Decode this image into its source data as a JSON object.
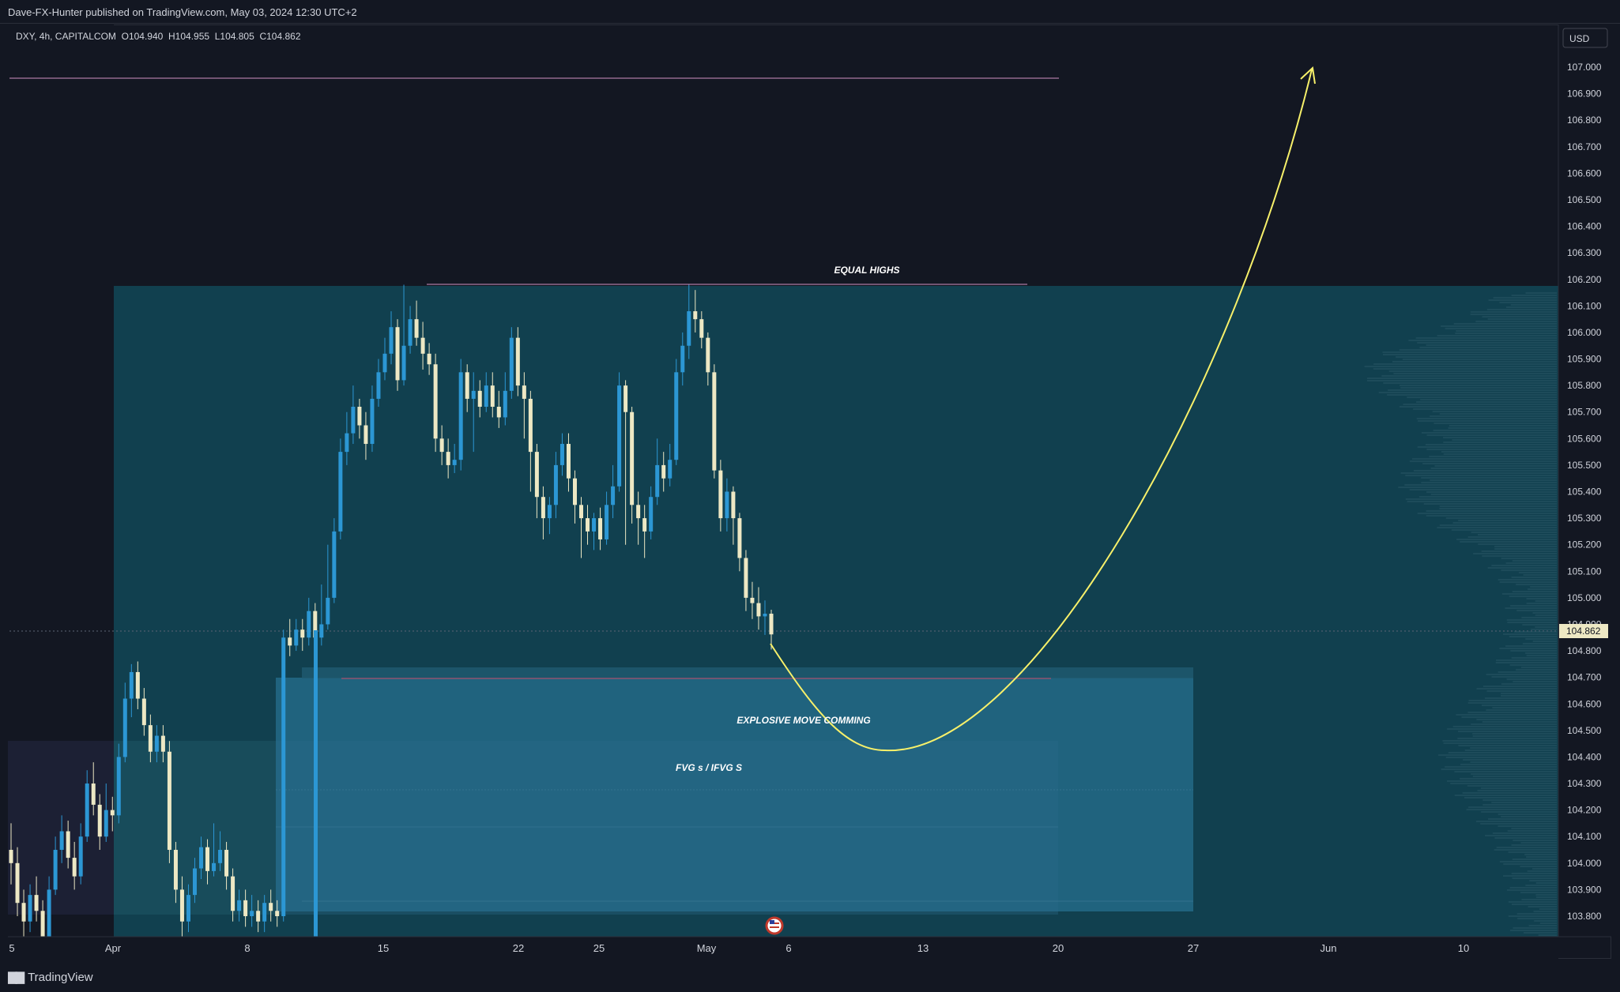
{
  "header": {
    "published": "Dave-FX-Hunter published on TradingView.com, May 03, 2024 12:30 UTC+2"
  },
  "legend": {
    "symbol": "DXY, 4h, CAPITALCOM",
    "open": "O104.940",
    "high": "H104.955",
    "low": "L104.805",
    "close": "C104.862"
  },
  "currency_button": "USD",
  "footer": {
    "brand": "TradingView",
    "logo_icon": "tradingview-logo-icon"
  },
  "colors": {
    "background": "#131722",
    "zone": "#11404f",
    "fvg": "#236a86",
    "bull": "#2c97d4",
    "bear": "#ede8c4",
    "arrow": "#f7f06a",
    "price_line": "#d291c3"
  },
  "chart_data": {
    "type": "candlestick",
    "title": "",
    "y_axis": {
      "min": 103.76,
      "max": 107.18,
      "ticks": [
        "103.800",
        "103.900",
        "104.000",
        "104.100",
        "104.200",
        "104.300",
        "104.400",
        "104.500",
        "104.600",
        "104.700",
        "104.800",
        "104.900",
        "105.000",
        "105.100",
        "105.200",
        "105.300",
        "105.400",
        "105.500",
        "105.600",
        "105.700",
        "105.800",
        "105.900",
        "106.000",
        "106.100",
        "106.200",
        "106.300",
        "106.400",
        "106.500",
        "106.600",
        "106.700",
        "106.800",
        "106.900",
        "107.000"
      ]
    },
    "x_axis": {
      "labels": [
        "5",
        "Apr",
        "8",
        "15",
        "22",
        "25",
        "May",
        "6",
        "13",
        "20",
        "27",
        "Jun",
        "10"
      ]
    },
    "current_price": "104.862",
    "annotations": [
      {
        "text": "EQUAL HIGHS",
        "level": 106.17
      },
      {
        "text": "EXPLOSIVE MOVE COMMING",
        "level": 104.58
      },
      {
        "text": "FVG s  / IFVG S",
        "level": 104.4
      }
    ],
    "candles": [
      [
        104.05,
        104.0,
        104.15,
        103.92
      ],
      [
        104.0,
        103.85,
        104.06,
        103.8
      ],
      [
        103.85,
        103.78,
        103.9,
        103.72
      ],
      [
        103.78,
        103.88,
        103.92,
        103.74
      ],
      [
        103.88,
        103.82,
        103.95,
        103.78
      ],
      [
        103.82,
        103.7,
        103.86,
        103.65
      ],
      [
        103.7,
        103.9,
        103.95,
        103.68
      ],
      [
        103.9,
        104.05,
        104.1,
        103.88
      ],
      [
        104.05,
        104.12,
        104.18,
        104.0
      ],
      [
        104.12,
        104.02,
        104.16,
        103.98
      ],
      [
        104.02,
        103.95,
        104.08,
        103.9
      ],
      [
        103.95,
        104.1,
        104.15,
        103.92
      ],
      [
        104.1,
        104.3,
        104.35,
        104.08
      ],
      [
        104.3,
        104.22,
        104.38,
        104.18
      ],
      [
        104.22,
        104.1,
        104.26,
        104.05
      ],
      [
        104.1,
        104.2,
        104.3,
        104.08
      ],
      [
        104.2,
        104.18,
        104.25,
        104.12
      ],
      [
        104.18,
        104.4,
        104.45,
        104.15
      ],
      [
        104.4,
        104.62,
        104.68,
        104.38
      ],
      [
        104.62,
        104.72,
        104.75,
        104.55
      ],
      [
        104.72,
        104.62,
        104.76,
        104.58
      ],
      [
        104.62,
        104.52,
        104.66,
        104.48
      ],
      [
        104.52,
        104.42,
        104.56,
        104.38
      ],
      [
        104.42,
        104.48,
        104.52,
        104.38
      ],
      [
        104.48,
        104.42,
        104.52,
        104.38
      ],
      [
        104.42,
        104.05,
        104.46,
        104.0
      ],
      [
        104.05,
        103.9,
        104.08,
        103.85
      ],
      [
        103.9,
        103.78,
        103.95,
        103.72
      ],
      [
        103.78,
        103.88,
        103.92,
        103.74
      ],
      [
        103.88,
        103.98,
        104.02,
        103.85
      ],
      [
        103.98,
        104.06,
        104.1,
        103.94
      ],
      [
        104.06,
        103.97,
        104.09,
        103.92
      ],
      [
        103.97,
        104.0,
        104.15,
        103.95
      ],
      [
        104.0,
        104.05,
        104.12,
        103.97
      ],
      [
        104.05,
        103.95,
        104.08,
        103.9
      ],
      [
        103.95,
        103.82,
        103.98,
        103.78
      ],
      [
        103.82,
        103.86,
        103.9,
        103.78
      ],
      [
        103.86,
        103.8,
        103.9,
        103.76
      ],
      [
        103.8,
        103.82,
        103.88,
        103.76
      ],
      [
        103.82,
        103.78,
        103.86,
        103.74
      ],
      [
        103.78,
        103.85,
        103.88,
        103.74
      ],
      [
        103.85,
        103.82,
        103.9,
        103.78
      ],
      [
        103.82,
        103.8,
        103.86,
        103.76
      ],
      [
        103.8,
        104.85,
        104.88,
        103.78
      ],
      [
        104.85,
        104.82,
        104.92,
        104.78
      ],
      [
        104.82,
        104.88,
        104.92,
        104.8
      ],
      [
        104.88,
        104.85,
        104.92,
        104.8
      ],
      [
        104.85,
        104.95,
        105.0,
        104.82
      ],
      [
        104.95,
        104.85,
        104.98,
        104.7
      ],
      [
        104.85,
        104.9,
        105.05,
        104.82
      ],
      [
        104.9,
        105.0,
        105.2,
        104.88
      ],
      [
        105.0,
        105.25,
        105.3,
        104.98
      ],
      [
        105.25,
        105.55,
        105.6,
        105.22
      ],
      [
        105.55,
        105.62,
        105.7,
        105.5
      ],
      [
        105.62,
        105.72,
        105.8,
        105.58
      ],
      [
        105.72,
        105.65,
        105.75,
        105.6
      ],
      [
        105.65,
        105.58,
        105.7,
        105.52
      ],
      [
        105.58,
        105.75,
        105.8,
        105.55
      ],
      [
        105.75,
        105.85,
        105.9,
        105.72
      ],
      [
        105.85,
        105.92,
        105.98,
        105.82
      ],
      [
        105.92,
        106.02,
        106.08,
        105.88
      ],
      [
        106.02,
        105.82,
        106.05,
        105.78
      ],
      [
        105.82,
        105.95,
        106.18,
        105.8
      ],
      [
        105.95,
        106.05,
        106.1,
        105.92
      ],
      [
        106.05,
        105.98,
        106.12,
        105.95
      ],
      [
        105.98,
        105.92,
        106.04,
        105.86
      ],
      [
        105.92,
        105.88,
        105.96,
        105.84
      ],
      [
        105.88,
        105.6,
        105.92,
        105.55
      ],
      [
        105.6,
        105.55,
        105.65,
        105.5
      ],
      [
        105.55,
        105.5,
        105.6,
        105.45
      ],
      [
        105.5,
        105.52,
        105.58,
        105.47
      ],
      [
        105.52,
        105.85,
        105.9,
        105.48
      ],
      [
        105.85,
        105.75,
        105.88,
        105.7
      ],
      [
        105.75,
        105.78,
        105.85,
        105.55
      ],
      [
        105.78,
        105.72,
        105.82,
        105.68
      ],
      [
        105.72,
        105.8,
        105.85,
        105.7
      ],
      [
        105.8,
        105.72,
        105.85,
        105.68
      ],
      [
        105.72,
        105.68,
        105.78,
        105.64
      ],
      [
        105.68,
        105.78,
        105.85,
        105.65
      ],
      [
        105.78,
        105.98,
        106.02,
        105.75
      ],
      [
        105.98,
        105.8,
        106.02,
        105.76
      ],
      [
        105.8,
        105.75,
        105.85,
        105.6
      ],
      [
        105.75,
        105.55,
        105.78,
        105.4
      ],
      [
        105.55,
        105.38,
        105.58,
        105.3
      ],
      [
        105.38,
        105.3,
        105.42,
        105.22
      ],
      [
        105.3,
        105.35,
        105.38,
        105.24
      ],
      [
        105.35,
        105.5,
        105.55,
        105.3
      ],
      [
        105.5,
        105.58,
        105.62,
        105.46
      ],
      [
        105.58,
        105.45,
        105.62,
        105.4
      ],
      [
        105.45,
        105.35,
        105.48,
        105.28
      ],
      [
        105.35,
        105.3,
        105.38,
        105.15
      ],
      [
        105.3,
        105.25,
        105.35,
        105.2
      ],
      [
        105.25,
        105.3,
        105.32,
        105.18
      ],
      [
        105.3,
        105.22,
        105.34,
        105.18
      ],
      [
        105.22,
        105.35,
        105.4,
        105.2
      ],
      [
        105.35,
        105.42,
        105.5,
        105.3
      ],
      [
        105.42,
        105.8,
        105.85,
        105.4
      ],
      [
        105.8,
        105.7,
        105.82,
        105.2
      ],
      [
        105.7,
        105.35,
        105.72,
        105.28
      ],
      [
        105.35,
        105.3,
        105.4,
        105.2
      ],
      [
        105.3,
        105.25,
        105.35,
        105.15
      ],
      [
        105.25,
        105.38,
        105.42,
        105.22
      ],
      [
        105.38,
        105.5,
        105.6,
        105.35
      ],
      [
        105.5,
        105.45,
        105.55,
        105.4
      ],
      [
        105.45,
        105.52,
        105.58,
        105.42
      ],
      [
        105.52,
        105.85,
        105.9,
        105.5
      ],
      [
        105.85,
        105.95,
        106.0,
        105.8
      ],
      [
        105.95,
        106.08,
        106.18,
        105.9
      ],
      [
        106.08,
        106.05,
        106.16,
        106.0
      ],
      [
        106.05,
        105.98,
        106.08,
        105.94
      ],
      [
        105.98,
        105.85,
        106.0,
        105.8
      ],
      [
        105.85,
        105.48,
        105.88,
        105.45
      ],
      [
        105.48,
        105.3,
        105.52,
        105.25
      ],
      [
        105.3,
        105.4,
        105.45,
        105.25
      ],
      [
        105.4,
        105.3,
        105.42,
        105.2
      ],
      [
        105.3,
        105.15,
        105.32,
        105.1
      ],
      [
        105.15,
        105.0,
        105.18,
        104.95
      ],
      [
        105.0,
        104.98,
        105.06,
        104.92
      ],
      [
        104.98,
        104.93,
        105.04,
        104.88
      ],
      [
        104.93,
        104.94,
        104.99,
        104.86
      ],
      [
        104.94,
        104.862,
        104.955,
        104.805
      ]
    ]
  }
}
